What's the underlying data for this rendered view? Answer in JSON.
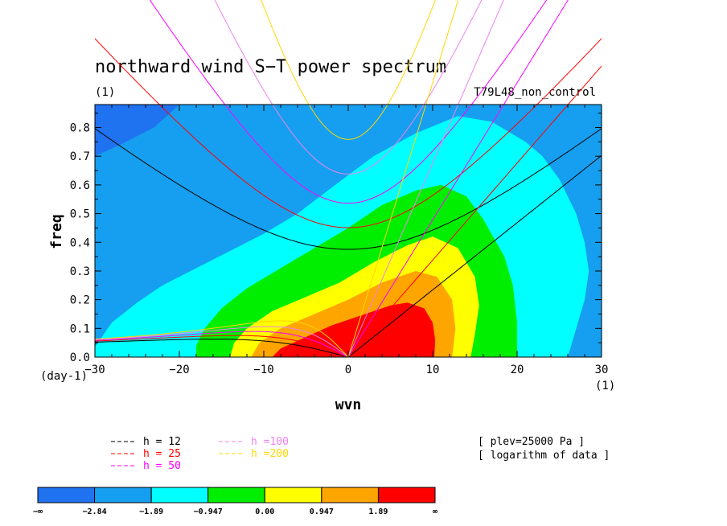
{
  "chart_data": {
    "type": "contour",
    "title": "northward wind S−T power spectrum",
    "units": "(1)",
    "experiment": "T79L48_non_control",
    "xlabel": "wvn",
    "ylabel": "freq",
    "x_unit_label": "(1)",
    "y_unit_label": "(day-1)",
    "xlim": [
      -30,
      30
    ],
    "ylim": [
      0,
      0.88
    ],
    "x_ticks": [
      -30,
      -20,
      -10,
      0,
      10,
      20,
      30
    ],
    "x_tick_labels": [
      "−30",
      "−20",
      "−10",
      "0",
      "10",
      "20",
      "30"
    ],
    "y_ticks": [
      0,
      0.1,
      0.2,
      0.3,
      0.4,
      0.5,
      0.6,
      0.7,
      0.8
    ],
    "y_tick_labels": [
      "0.0",
      "0.1",
      "0.2",
      "0.3",
      "0.4",
      "0.5",
      "0.6",
      "0.7",
      "0.8"
    ],
    "contour_levels": [
      "−∞",
      "−2.84",
      "−1.89",
      "−0.947",
      "0.00",
      "0.947",
      "1.89",
      "∞"
    ],
    "fill_colors": [
      "#1f72f0",
      "#169ff0",
      "#00ffff",
      "#00ee00",
      "#ffff00",
      "#ffa500",
      "#ff0000"
    ],
    "region_boundaries": [
      {
        "level": "−2.84",
        "points": [
          [
            -30,
            0.7
          ],
          [
            -27,
            0.74
          ],
          [
            -23,
            0.8
          ],
          [
            -20,
            0.88
          ]
        ]
      },
      {
        "level": "−1.89",
        "points": [
          [
            -30,
            0.035
          ],
          [
            -28,
            0.12
          ],
          [
            -25,
            0.19
          ],
          [
            -22,
            0.25
          ],
          [
            -18,
            0.31
          ],
          [
            -14,
            0.37
          ],
          [
            -10,
            0.43
          ],
          [
            -6,
            0.5
          ],
          [
            -2,
            0.59
          ],
          [
            3,
            0.7
          ],
          [
            8,
            0.78
          ],
          [
            13,
            0.84
          ],
          [
            17,
            0.82
          ],
          [
            21,
            0.75
          ],
          [
            23,
            0.7
          ],
          [
            25,
            0.62
          ],
          [
            27,
            0.5
          ],
          [
            28,
            0.4
          ],
          [
            28.5,
            0.3
          ],
          [
            28,
            0.2
          ],
          [
            27,
            0.1
          ],
          [
            26,
            0.0
          ]
        ]
      },
      {
        "level": "−0.947",
        "points": [
          [
            -18,
            0.0
          ],
          [
            -18,
            0.04
          ],
          [
            -17,
            0.1
          ],
          [
            -15,
            0.17
          ],
          [
            -12,
            0.24
          ],
          [
            -8,
            0.31
          ],
          [
            -4,
            0.38
          ],
          [
            0,
            0.45
          ],
          [
            4,
            0.53
          ],
          [
            8,
            0.58
          ],
          [
            11,
            0.6
          ],
          [
            14,
            0.56
          ],
          [
            16,
            0.48
          ],
          [
            18.5,
            0.35
          ],
          [
            19.5,
            0.25
          ],
          [
            20,
            0.12
          ],
          [
            20,
            0.0
          ]
        ]
      },
      {
        "level": "0.00",
        "points": [
          [
            -14,
            0.0
          ],
          [
            -13.5,
            0.05
          ],
          [
            -12,
            0.1
          ],
          [
            -9,
            0.16
          ],
          [
            -5,
            0.21
          ],
          [
            -1,
            0.26
          ],
          [
            3,
            0.33
          ],
          [
            7,
            0.39
          ],
          [
            10,
            0.42
          ],
          [
            13,
            0.38
          ],
          [
            15,
            0.28
          ],
          [
            15.5,
            0.18
          ],
          [
            15,
            0.08
          ],
          [
            14.5,
            0.0
          ]
        ]
      },
      {
        "level": "0.947",
        "points": [
          [
            -11.5,
            0.0
          ],
          [
            -10.5,
            0.05
          ],
          [
            -8,
            0.1
          ],
          [
            -4,
            0.15
          ],
          [
            0,
            0.2
          ],
          [
            4,
            0.26
          ],
          [
            8,
            0.3
          ],
          [
            10.5,
            0.28
          ],
          [
            12.3,
            0.2
          ],
          [
            12.7,
            0.1
          ],
          [
            12.3,
            0.0
          ]
        ]
      },
      {
        "level": "1.89",
        "points": [
          [
            -9,
            0.0
          ],
          [
            -8,
            0.03
          ],
          [
            -5,
            0.07
          ],
          [
            -2,
            0.11
          ],
          [
            2,
            0.15
          ],
          [
            5,
            0.18
          ],
          [
            7,
            0.19
          ],
          [
            9,
            0.17
          ],
          [
            10,
            0.12
          ],
          [
            10.3,
            0.06
          ],
          [
            10.2,
            0.0
          ]
        ]
      }
    ],
    "dispersion_curves": [
      {
        "name": "h = 12",
        "color": "#000000",
        "equivalent_depth": 12
      },
      {
        "name": "h = 25",
        "color": "#ff0000",
        "equivalent_depth": 25
      },
      {
        "name": "h = 50",
        "color": "#ff00ff",
        "equivalent_depth": 50
      },
      {
        "name": "h =100",
        "color": "#ee82ee",
        "equivalent_depth": 100
      },
      {
        "name": "h =200",
        "color": "#ffd700",
        "equivalent_depth": 200
      }
    ],
    "notes": [
      "[ plev=25000 Pa ]",
      "[ logarithm of data ]"
    ]
  }
}
